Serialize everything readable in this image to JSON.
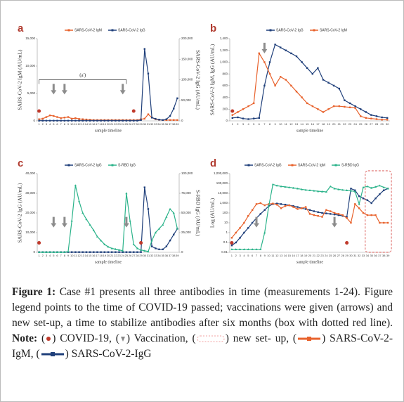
{
  "chart_data": [
    {
      "type": "line",
      "title": "a",
      "annotation": "(a')",
      "xlabel": "sample timeline",
      "ylabel": "SARS-CoV-2 IgM (AU/mL)",
      "y2label": "SARS-CoV-2 IgG (AU/mL)",
      "categories": [
        1,
        2,
        3,
        4,
        5,
        6,
        7,
        8,
        9,
        10,
        11,
        12,
        13,
        14,
        15,
        16,
        17,
        18,
        19,
        20,
        21,
        22,
        23,
        24,
        25,
        26,
        27,
        28,
        29,
        30,
        31,
        32,
        33,
        34,
        35,
        36,
        37,
        38,
        39
      ],
      "ylim": [
        0,
        15000
      ],
      "yticks": [
        0,
        {
          "value": 5000,
          "label": "5,000"
        },
        {
          "value": 10000,
          "label": "10,000"
        },
        {
          "value": 15000,
          "label": "15,000"
        }
      ],
      "y2lim": [
        0,
        200000
      ],
      "y2ticks": [
        0,
        {
          "value": 50000,
          "label": "50,000"
        },
        {
          "value": 100000,
          "label": "100,000"
        },
        {
          "value": 150000,
          "label": "150,000"
        },
        {
          "value": 200000,
          "label": "200,000"
        }
      ],
      "series": [
        {
          "name": "SARS-CoV-2 IgM",
          "color": "#e8622c",
          "values": [
            300,
            400,
            700,
            1000,
            900,
            700,
            500,
            600,
            700,
            400,
            500,
            350,
            300,
            250,
            200,
            150,
            150,
            150,
            150,
            150,
            150,
            150,
            150,
            150,
            150,
            150,
            150,
            150,
            300,
            400,
            1200,
            600,
            300,
            200,
            150,
            150,
            150,
            150,
            150
          ]
        },
        {
          "name": "SARS-CoV-2 IgG",
          "color": "#1f3f7a",
          "axis": "y2",
          "values": [
            500,
            500,
            500,
            500,
            500,
            500,
            500,
            500,
            500,
            500,
            500,
            500,
            500,
            500,
            500,
            500,
            500,
            500,
            500,
            500,
            500,
            500,
            500,
            500,
            500,
            500,
            500,
            500,
            2000,
            175000,
            115000,
            8000,
            5000,
            3000,
            2000,
            4000,
            12000,
            30000,
            55000
          ]
        }
      ]
    },
    {
      "type": "line",
      "title": "b",
      "xlabel": "sample timeline",
      "ylabel": "SARS-CoV-2 IgM, IgG (AU/mL)",
      "categories": [
        1,
        2,
        3,
        4,
        5,
        6,
        7,
        8,
        9,
        10,
        11,
        12,
        13,
        14,
        15,
        16,
        17,
        18,
        19,
        20,
        21,
        22,
        23,
        24,
        25,
        26,
        27,
        28,
        29,
        30
      ],
      "ylim": [
        0,
        1400
      ],
      "yticks": [
        0,
        200,
        400,
        600,
        800,
        {
          "value": 1000,
          "label": "1,000"
        },
        {
          "value": 1200,
          "label": "1,200"
        },
        {
          "value": 1400,
          "label": "1,400"
        }
      ],
      "series": [
        {
          "name": "SARS-CoV-2 IgG",
          "color": "#1f3f7a",
          "values": [
            50,
            60,
            40,
            30,
            40,
            50,
            600,
            1000,
            1300,
            1250,
            1200,
            1150,
            1100,
            1000,
            900,
            800,
            900,
            700,
            650,
            600,
            550,
            350,
            300,
            250,
            200,
            150,
            100,
            80,
            60,
            50
          ]
        },
        {
          "name": "SARS-CoV-2 IgM",
          "color": "#e8622c",
          "values": [
            100,
            150,
            200,
            250,
            300,
            1150,
            1000,
            800,
            600,
            750,
            700,
            600,
            500,
            400,
            300,
            250,
            200,
            150,
            200,
            250,
            250,
            240,
            230,
            220,
            80,
            50,
            40,
            30,
            20,
            20
          ]
        }
      ]
    },
    {
      "type": "line",
      "title": "c",
      "xlabel": "sample timeline",
      "ylabel": "SARS-CoV-2 IgG (AU/mL)",
      "y2label": "S-RBD IgG (AU/mL)",
      "categories": [
        1,
        2,
        3,
        4,
        5,
        6,
        7,
        8,
        9,
        10,
        11,
        12,
        13,
        14,
        15,
        16,
        17,
        18,
        19,
        20,
        21,
        22,
        23,
        24,
        25,
        26,
        27,
        28,
        29,
        30,
        31,
        32,
        33,
        34,
        35,
        36,
        37,
        38,
        39
      ],
      "ylim": [
        0,
        40000
      ],
      "yticks": [
        0,
        {
          "value": 10000,
          "label": "10,000"
        },
        {
          "value": 20000,
          "label": "20,000"
        },
        {
          "value": 30000,
          "label": "30,000"
        },
        {
          "value": 40000,
          "label": "40,000"
        }
      ],
      "y2lim": [
        0,
        100000
      ],
      "y2ticks": [
        0,
        {
          "value": 25000,
          "label": "25,000"
        },
        {
          "value": 50000,
          "label": "50,000"
        },
        {
          "value": 75000,
          "label": "75,000"
        },
        {
          "value": 100000,
          "label": "100,000"
        }
      ],
      "series": [
        {
          "name": "SARS-CoV-2 IgG",
          "color": "#1f3f7a",
          "values": [
            100,
            100,
            100,
            100,
            100,
            100,
            100,
            100,
            100,
            100,
            100,
            100,
            100,
            100,
            100,
            100,
            100,
            100,
            100,
            100,
            100,
            100,
            100,
            100,
            100,
            100,
            100,
            100,
            100,
            33000,
            22000,
            3000,
            2000,
            1500,
            1500,
            3000,
            6000,
            9000,
            12000
          ]
        },
        {
          "name": "S-RBD IgG",
          "color": "#2bb38a",
          "axis": "y2",
          "values": [
            200,
            200,
            200,
            200,
            200,
            200,
            200,
            200,
            1000,
            40000,
            85000,
            65000,
            50000,
            42000,
            35000,
            28000,
            20000,
            15000,
            10000,
            7000,
            5000,
            4000,
            3000,
            2000,
            75000,
            40000,
            10000,
            5000,
            3000,
            2000,
            1000,
            15000,
            25000,
            30000,
            35000,
            45000,
            55000,
            50000,
            30000
          ]
        }
      ]
    },
    {
      "type": "line",
      "title": "d",
      "xlabel": "sample timeline",
      "ylabel": "Log (AU/mL)",
      "log_y": true,
      "categories": [
        1,
        2,
        3,
        4,
        5,
        6,
        7,
        8,
        9,
        10,
        11,
        12,
        13,
        14,
        15,
        16,
        17,
        18,
        19,
        20,
        21,
        22,
        23,
        24,
        25,
        26,
        27,
        28,
        29,
        30,
        31,
        32,
        33,
        34,
        35,
        36,
        37,
        38,
        39
      ],
      "ylim": [
        0.01,
        1000000
      ],
      "yticks": [
        0.01,
        0.1,
        1,
        10,
        100,
        {
          "value": 1000,
          "label": "1,000"
        },
        {
          "value": 10000,
          "label": "10,000"
        },
        {
          "value": 100000,
          "label": "100,000"
        },
        {
          "value": 1000000,
          "label": "1,000,000"
        }
      ],
      "series": [
        {
          "name": "SARS-CoV-2 IgG",
          "color": "#1f3f7a",
          "values": [
            0.05,
            0.1,
            0.3,
            1,
            3,
            10,
            30,
            80,
            200,
            500,
            800,
            900,
            800,
            700,
            600,
            500,
            400,
            300,
            250,
            200,
            150,
            120,
            100,
            90,
            80,
            70,
            60,
            50,
            40,
            30000,
            20000,
            5000,
            3000,
            2000,
            1000,
            3000,
            8000,
            20000,
            30000
          ]
        },
        {
          "name": "SARS-CoV-2 IgM",
          "color": "#e8622c",
          "values": [
            0.3,
            1,
            3,
            10,
            50,
            200,
            800,
            1000,
            600,
            800,
            900,
            700,
            300,
            500,
            600,
            400,
            250,
            300,
            400,
            80,
            60,
            50,
            40,
            200,
            150,
            100,
            80,
            60,
            30,
            10,
            800,
            300,
            100,
            60,
            60,
            60,
            10,
            10,
            10
          ]
        },
        {
          "name": "S-RBD IgG",
          "color": "#2bb38a",
          "values": [
            0.02,
            0.02,
            0.02,
            0.02,
            0.02,
            0.02,
            0.02,
            0.02,
            1,
            500,
            80000,
            60000,
            50000,
            45000,
            40000,
            35000,
            30000,
            25000,
            22000,
            20000,
            18000,
            16000,
            15000,
            14000,
            50000,
            30000,
            25000,
            22000,
            20000,
            18000,
            15000,
            800,
            40000,
            50000,
            35000,
            45000,
            60000,
            40000,
            30000
          ]
        }
      ]
    }
  ],
  "caption": {
    "label": "Figure 1:",
    "text": "Case #1 presents all three antibodies in time (measurements 1-24). Figure legend points to the time of COVID-19 passed; vaccinations were given (arrows) and new set-up, a time to stabilize antibodies after six months (box with dotted red line).",
    "note_label": "Note:",
    "note_parts": [
      "(",
      ") COVID-19, (",
      ") Vaccination, (",
      ") new set- up, (",
      ") SARS-CoV-2-IgM, (",
      ") SARS-CoV-2-IgG"
    ]
  }
}
